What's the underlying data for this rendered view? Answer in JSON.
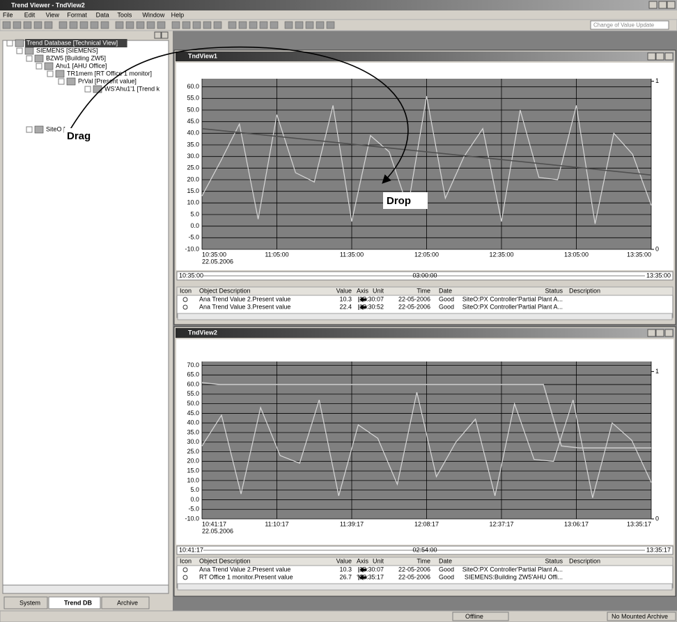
{
  "app": {
    "title": "Trend Viewer - TndView2",
    "menu": [
      "File",
      "Edit",
      "View",
      "Format",
      "Data",
      "Tools",
      "Window",
      "Help"
    ],
    "combo": "Change of Value Update"
  },
  "tree": {
    "nodes": [
      "Trend Database [Technical View]",
      "SIEMENS [SIEMENS]",
      "BZW5 [Building ZW5]",
      "Ahu1 [AHU Office]",
      "TR1mem [RT Office 1 monitor]",
      "PrVal [Present value]",
      "WS'Ahu1'1 [Trend k",
      "SiteO ["
    ],
    "tabs": [
      "System",
      "Trend DB",
      "Archive"
    ]
  },
  "annotations": {
    "drag": "Drag",
    "drop": "Drop"
  },
  "views": [
    {
      "title": "TndView1",
      "chart": {
        "ylim": [
          -10,
          63.5
        ],
        "y2lim": [
          0,
          1.015
        ],
        "yticks": [
          {
            "value": 60,
            "label": "60.0"
          },
          {
            "value": 55,
            "label": "55.0"
          },
          {
            "value": 50,
            "label": "50.0"
          },
          {
            "value": 45,
            "label": "45.0"
          },
          {
            "value": 40,
            "label": "40.0"
          },
          {
            "value": 35,
            "label": "35.0"
          },
          {
            "value": 30,
            "label": "30.0"
          },
          {
            "value": 25,
            "label": "25.0"
          },
          {
            "value": 20,
            "label": "20.0"
          },
          {
            "value": 15,
            "label": "15.0"
          },
          {
            "value": 10,
            "label": "10.0"
          },
          {
            "value": 5,
            "label": "5.0"
          },
          {
            "value": 0,
            "label": "0.0"
          },
          {
            "value": -5,
            "label": "-5.0"
          },
          {
            "value": -10,
            "label": "-10.0"
          }
        ],
        "y2ticks": [
          1,
          0
        ],
        "xticks": [
          "10:35:00",
          "11:05:00",
          "11:35:00",
          "12:05:00",
          "12:35:00",
          "13:05:00",
          "13:35:00"
        ],
        "date": "22.05.2006",
        "series": [
          {
            "color": "#d8d8d8",
            "values": [
              13,
              28,
              44,
              3,
              48,
              23,
              19,
              52,
              2,
              39,
              32,
              8,
              56,
              12,
              30,
              42,
              2,
              50,
              21,
              20,
              52,
              1,
              40,
              31,
              9
            ]
          },
          {
            "color": "#505050",
            "values": [
              42,
              22
            ]
          }
        ]
      },
      "timebar": [
        "10:35:00",
        "03:00:00",
        "13:35:00"
      ],
      "table": {
        "columns": [
          "Icon",
          "Object Description",
          "Value",
          "Axis",
          "Unit",
          "Time",
          "Date",
          "Status",
          "Description"
        ],
        "rows": [
          [
            "Ana Trend Value 2.Present value",
            "10.3",
            "",
            "13:30:07",
            "22-05-2006",
            "Good",
            "SiteO:PX Controller'Partial Plant A..."
          ],
          [
            "Ana Trend Value 3.Present value",
            "22.4",
            "",
            "13:30:52",
            "22-05-2006",
            "Good",
            "SiteO:PX Controller'Partial Plant A..."
          ]
        ]
      }
    },
    {
      "title": "TndView2",
      "chart": {
        "ylim": [
          -10,
          72
        ],
        "y2lim": [
          0,
          1.068
        ],
        "yticks": [
          {
            "value": 70,
            "label": "70.0"
          },
          {
            "value": 65,
            "label": "65.0"
          },
          {
            "value": 60,
            "label": "60.0"
          },
          {
            "value": 55,
            "label": "55.0"
          },
          {
            "value": 50,
            "label": "50.0"
          },
          {
            "value": 45,
            "label": "45.0"
          },
          {
            "value": 40,
            "label": "40.0"
          },
          {
            "value": 35,
            "label": "35.0"
          },
          {
            "value": 30,
            "label": "30.0"
          },
          {
            "value": 25,
            "label": "25.0"
          },
          {
            "value": 20,
            "label": "20.0"
          },
          {
            "value": 15,
            "label": "15.0"
          },
          {
            "value": 10,
            "label": "10.0"
          },
          {
            "value": 5,
            "label": "5.0"
          },
          {
            "value": 0,
            "label": "0.0"
          },
          {
            "value": -5,
            "label": "-5.0"
          },
          {
            "value": -10,
            "label": "-10.0"
          }
        ],
        "y2ticks": [
          1,
          0
        ],
        "xticks": [
          "10:41:17",
          "11:10:17",
          "11:39:17",
          "12:08:17",
          "12:37:17",
          "13:06:17",
          "13:35:17"
        ],
        "date": "22.05.2006",
        "series": [
          {
            "color": "#d8d8d8",
            "values": [
              28,
              44,
              3,
              48,
              23,
              19,
              52,
              2,
              39,
              32,
              8,
              56,
              12,
              30,
              42,
              2,
              50,
              21,
              20,
              52,
              1,
              40,
              31,
              9
            ]
          },
          {
            "color": "#c8c8c8",
            "values": [
              61,
              60,
              60,
              60,
              60,
              60,
              60,
              60,
              60,
              60,
              60,
              60,
              60,
              60,
              60,
              60,
              60,
              60,
              60,
              60,
              28,
              27,
              27,
              27,
              27,
              27
            ]
          }
        ]
      },
      "timebar": [
        "10:41:17",
        "02:54:00",
        "13:35:17"
      ],
      "table": {
        "columns": [
          "Icon",
          "Object Description",
          "Value",
          "Axis",
          "Unit",
          "Time",
          "Date",
          "Status",
          "Description"
        ],
        "rows": [
          [
            "Ana Trend Value 2.Present value",
            "10.3",
            "",
            "13:30:07",
            "22-05-2006",
            "Good",
            "SiteO:PX Controller'Partial Plant A..."
          ],
          [
            "RT Office 1 monitor.Present value",
            "26.7",
            "°C",
            "13:35:17",
            "22-05-2006",
            "Good",
            "SIEMENS:Building ZW5'AHU Offi..."
          ]
        ]
      }
    }
  ],
  "status": {
    "mode": "Offline",
    "archive": "No Mounted Archive"
  }
}
